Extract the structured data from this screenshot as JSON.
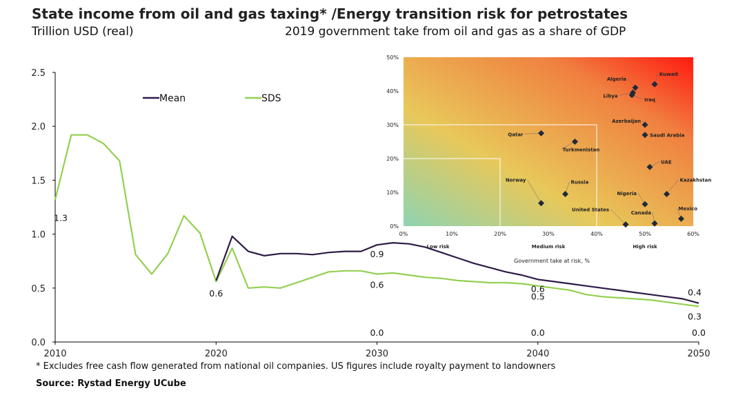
{
  "header": {
    "title": "State income from oil and gas taxing* /Energy transition risk for petrostates",
    "subtitle_left": "Trillion USD (real)",
    "subtitle_right": "2019 government take from oil and gas as a share of GDP"
  },
  "footnote": "* Excludes free cash flow generated from national oil companies. US figures include royalty payment to landowners",
  "source": "Source: Rystad Energy UCube",
  "colors": {
    "mean": "#2e1a47",
    "sds": "#92d050",
    "axis": "#000000"
  },
  "chart_data": [
    {
      "type": "line",
      "title": "State income from oil and gas taxing",
      "ylabel": "Trillion USD (real)",
      "xlim": [
        2010,
        2050
      ],
      "ylim": [
        0,
        2.5
      ],
      "x_ticks": [
        "2010",
        "2020",
        "2030",
        "2040",
        "2050"
      ],
      "y_ticks": [
        "0.0",
        "0.5",
        "1.0",
        "1.5",
        "2.0",
        "2.5"
      ],
      "legend": [
        "Mean",
        "SDS"
      ],
      "series": [
        {
          "name": "Mean",
          "color": "#2e1a47",
          "x": [
            2020,
            2021,
            2022,
            2023,
            2024,
            2025,
            2026,
            2027,
            2028,
            2029,
            2030,
            2031,
            2032,
            2033,
            2034,
            2035,
            2036,
            2037,
            2038,
            2039,
            2040,
            2041,
            2042,
            2043,
            2044,
            2045,
            2046,
            2047,
            2048,
            2049,
            2050
          ],
          "values": [
            0.57,
            0.98,
            0.84,
            0.8,
            0.82,
            0.82,
            0.81,
            0.83,
            0.84,
            0.84,
            0.9,
            0.92,
            0.91,
            0.88,
            0.83,
            0.78,
            0.73,
            0.69,
            0.65,
            0.62,
            0.58,
            0.56,
            0.54,
            0.52,
            0.5,
            0.48,
            0.46,
            0.44,
            0.42,
            0.4,
            0.36
          ]
        },
        {
          "name": "SDS",
          "color": "#92d050",
          "x": [
            2010,
            2011,
            2012,
            2013,
            2014,
            2015,
            2016,
            2017,
            2018,
            2019,
            2020,
            2021,
            2022,
            2023,
            2024,
            2025,
            2026,
            2027,
            2028,
            2029,
            2030,
            2031,
            2032,
            2033,
            2034,
            2035,
            2036,
            2037,
            2038,
            2039,
            2040,
            2041,
            2042,
            2043,
            2044,
            2045,
            2046,
            2047,
            2048,
            2049,
            2050
          ],
          "values": [
            1.32,
            1.92,
            1.92,
            1.84,
            1.68,
            0.81,
            0.63,
            0.82,
            1.17,
            1.01,
            0.56,
            0.87,
            0.5,
            0.51,
            0.5,
            0.55,
            0.6,
            0.65,
            0.66,
            0.66,
            0.63,
            0.64,
            0.62,
            0.6,
            0.59,
            0.57,
            0.56,
            0.55,
            0.55,
            0.54,
            0.52,
            0.5,
            0.48,
            0.44,
            0.42,
            0.41,
            0.4,
            0.39,
            0.37,
            0.35,
            0.33
          ]
        }
      ],
      "data_labels": [
        {
          "x": 2010,
          "value": 1.3,
          "text": "1.3"
        },
        {
          "x": 2020,
          "value": 0.6,
          "text": "0.6"
        },
        {
          "x": 2030,
          "value": 0.9,
          "text": "0.9"
        },
        {
          "x": 2030,
          "value": 0.6,
          "text": "0.6"
        },
        {
          "x": 2030,
          "value": 0.0,
          "text": "0.0"
        },
        {
          "x": 2040,
          "value": 0.6,
          "text": "0.6"
        },
        {
          "x": 2040,
          "value": 0.5,
          "text": "0.5"
        },
        {
          "x": 2040,
          "value": 0.0,
          "text": "0.0"
        },
        {
          "x": 2050,
          "value": 0.4,
          "text": "0.4"
        },
        {
          "x": 2050,
          "value": 0.3,
          "text": "0.3"
        },
        {
          "x": 2050,
          "value": 0.0,
          "text": "0.0"
        }
      ]
    },
    {
      "type": "scatter",
      "title": "Energy transition risk for petrostates",
      "xlabel": "Government take at risk, %",
      "ylabel": "2019 government take from oil and gas as a share of GDP",
      "xlim": [
        0,
        60
      ],
      "ylim": [
        0,
        50
      ],
      "x_ticks": [
        "0%",
        "10%",
        "20%",
        "30%",
        "40%",
        "50%",
        "60%"
      ],
      "y_ticks": [
        "0%",
        "10%",
        "20%",
        "30%",
        "40%",
        "50%"
      ],
      "zones": [
        "Low risk",
        "Medium risk",
        "High risk"
      ],
      "points": [
        {
          "name": "Kuwait",
          "x": 52,
          "y": 42
        },
        {
          "name": "Algeria",
          "x": 48,
          "y": 41
        },
        {
          "name": "Libya",
          "x": 47.5,
          "y": 39.5
        },
        {
          "name": "Iraq",
          "x": 47.3,
          "y": 38.8
        },
        {
          "name": "Azerbaijan",
          "x": 50,
          "y": 30
        },
        {
          "name": "Saudi Arabia",
          "x": 50,
          "y": 27
        },
        {
          "name": "Qatar",
          "x": 28.5,
          "y": 27.5
        },
        {
          "name": "Turkmenistan",
          "x": 35.5,
          "y": 25
        },
        {
          "name": "UAE",
          "x": 51,
          "y": 17.5
        },
        {
          "name": "Kazakhstan",
          "x": 54.5,
          "y": 9.5
        },
        {
          "name": "Norway",
          "x": 28.5,
          "y": 6.8
        },
        {
          "name": "Russia",
          "x": 33.5,
          "y": 9.5
        },
        {
          "name": "Nigeria",
          "x": 50,
          "y": 6.5
        },
        {
          "name": "United States",
          "x": 46,
          "y": 0.5
        },
        {
          "name": "Canada",
          "x": 52,
          "y": 0.8
        },
        {
          "name": "Mexico",
          "x": 57.5,
          "y": 2.2
        }
      ]
    }
  ]
}
